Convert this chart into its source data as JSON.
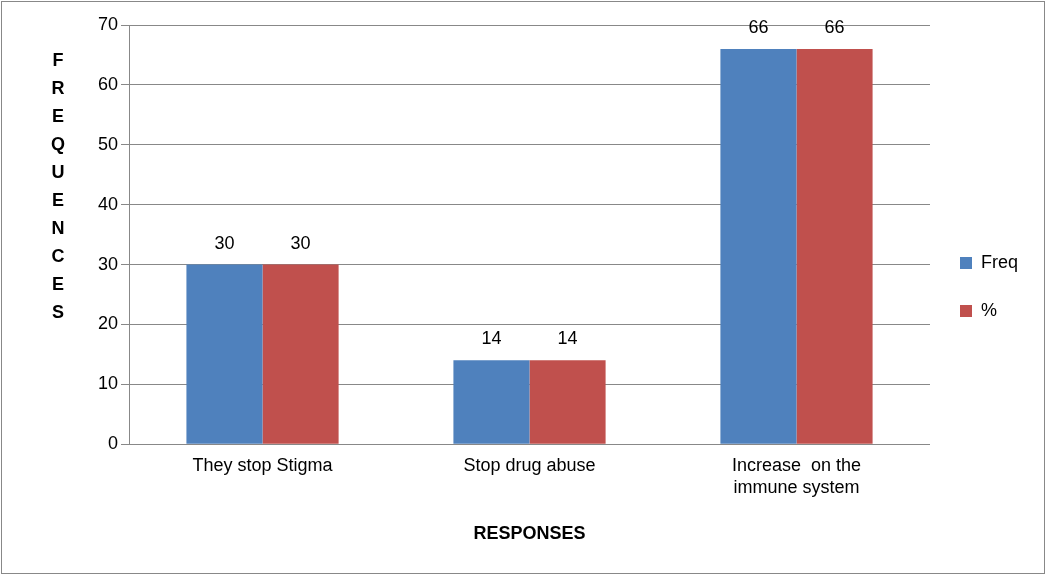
{
  "chart_data": {
    "type": "bar",
    "xlabel": "RESPONSES",
    "ylabel": "FREQUENCES",
    "categories": [
      "They stop Stigma",
      "Stop drug abuse",
      "Increase  on the immune system"
    ],
    "series": [
      {
        "name": "Freq",
        "color": "#4f81bd",
        "values": [
          30,
          14,
          66
        ]
      },
      {
        "name": "%",
        "color": "#c0504d",
        "values": [
          30,
          14,
          66
        ]
      }
    ],
    "ylim": [
      0,
      70
    ],
    "yticks": [
      0,
      10,
      20,
      30,
      40,
      50,
      60,
      70
    ],
    "grid": "y",
    "legend": "right",
    "data_labels": true
  }
}
